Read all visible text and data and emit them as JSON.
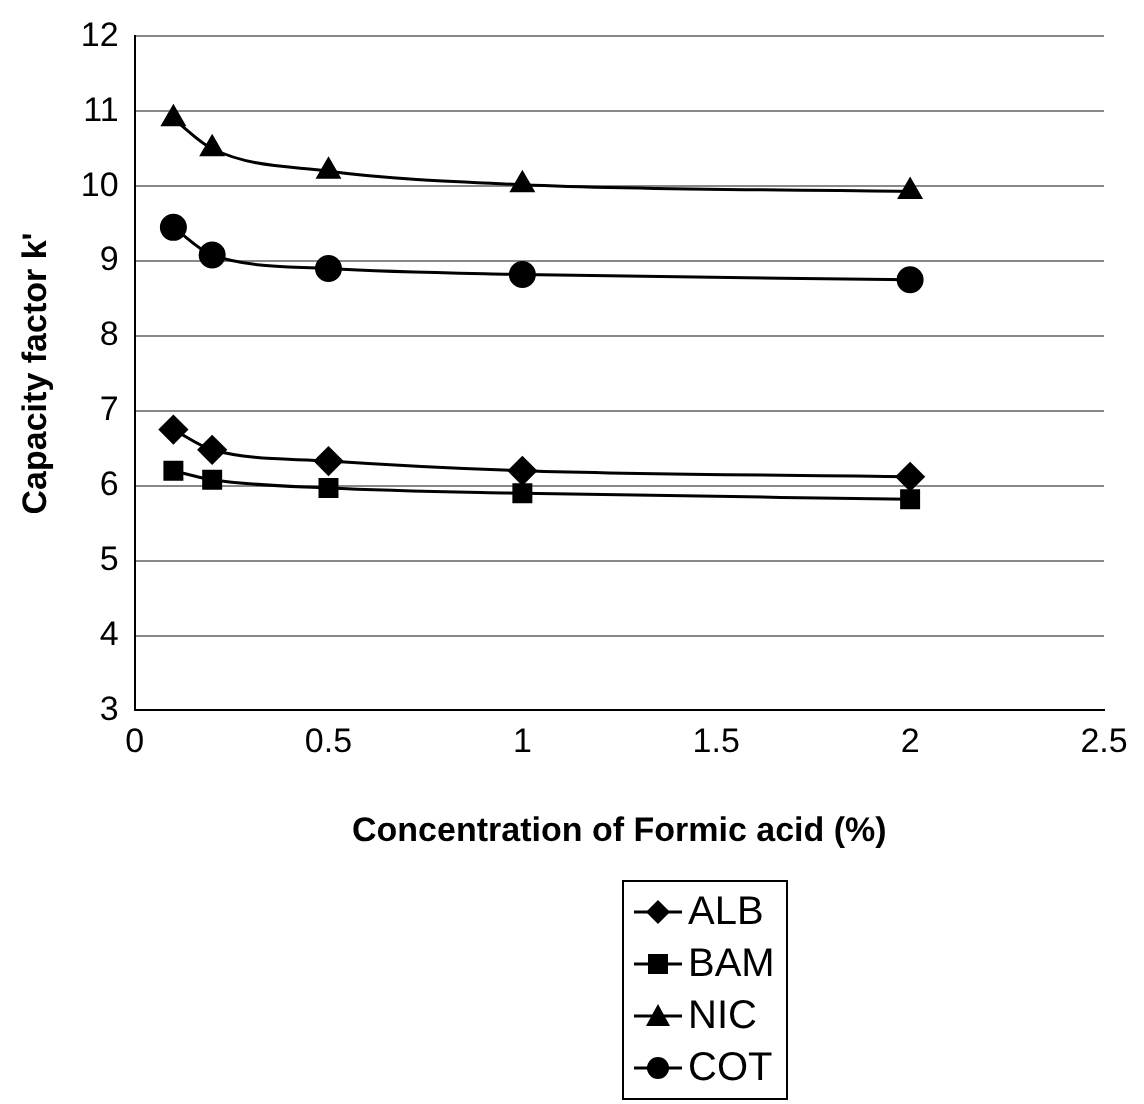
{
  "chart_data": {
    "type": "line",
    "xlabel": "Concentration of Formic acid (%)",
    "ylabel": "Capacity factor k'",
    "xlim": [
      0,
      2.5
    ],
    "xticks": [
      0,
      0.5,
      1,
      1.5,
      2,
      2.5
    ],
    "ylim": [
      3,
      12
    ],
    "yticks": [
      3,
      4,
      5,
      6,
      7,
      8,
      9,
      10,
      11,
      12
    ],
    "grid": "y",
    "legend": "bottom",
    "x": [
      0.1,
      0.2,
      0.5,
      1,
      2
    ],
    "series": [
      {
        "name": "ALB",
        "color": "#000000",
        "marker": "diamond",
        "values": [
          6.75,
          6.48,
          6.33,
          6.2,
          6.12
        ]
      },
      {
        "name": "BAM",
        "color": "#000000",
        "marker": "square",
        "values": [
          6.2,
          6.08,
          5.97,
          5.9,
          5.82
        ]
      },
      {
        "name": "NIC",
        "color": "#000000",
        "marker": "triangle",
        "values": [
          10.9,
          10.5,
          10.2,
          10.02,
          9.93
        ]
      },
      {
        "name": "COT",
        "color": "#000000",
        "marker": "circle",
        "values": [
          9.45,
          9.08,
          8.9,
          8.82,
          8.75
        ]
      }
    ]
  }
}
